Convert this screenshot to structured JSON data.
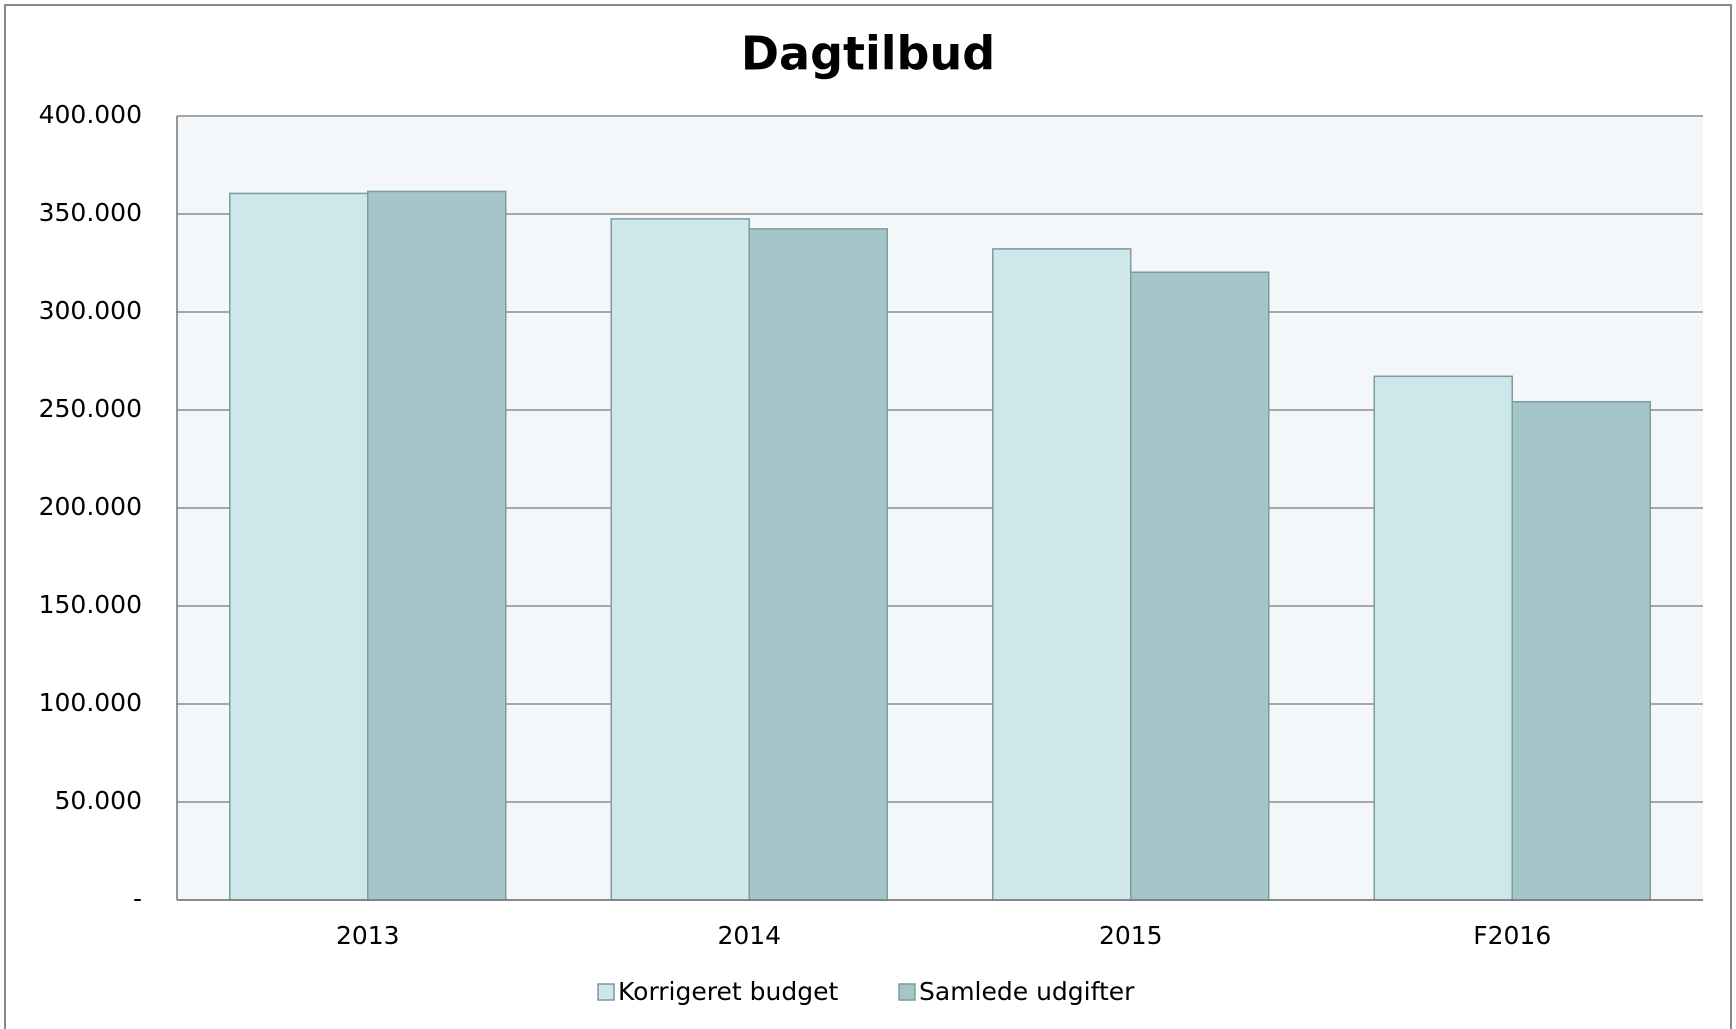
{
  "chart_data": {
    "type": "bar",
    "title": "Dagtilbud",
    "categories": [
      "2013",
      "2014",
      "2015",
      "F2016"
    ],
    "series": [
      {
        "name": "Korrigeret budget",
        "color": "#cde7ea",
        "values": [
          360500,
          347500,
          332200,
          267200
        ]
      },
      {
        "name": "Samlede udgifter",
        "color": "#a5c6c8",
        "values": [
          361500,
          342400,
          320300,
          254200
        ]
      }
    ],
    "ylim": [
      0,
      400000
    ],
    "yticks": [
      {
        "value": 0,
        "label": "-"
      },
      {
        "value": 50000,
        "label": "50.000"
      },
      {
        "value": 100000,
        "label": "100.000"
      },
      {
        "value": 150000,
        "label": "150.000"
      },
      {
        "value": 200000,
        "label": "200.000"
      },
      {
        "value": 250000,
        "label": "250.000"
      },
      {
        "value": 300000,
        "label": "300.000"
      },
      {
        "value": 350000,
        "label": "350.000"
      },
      {
        "value": 400000,
        "label": "400.000"
      }
    ],
    "grid": true,
    "legend": "bottom"
  }
}
